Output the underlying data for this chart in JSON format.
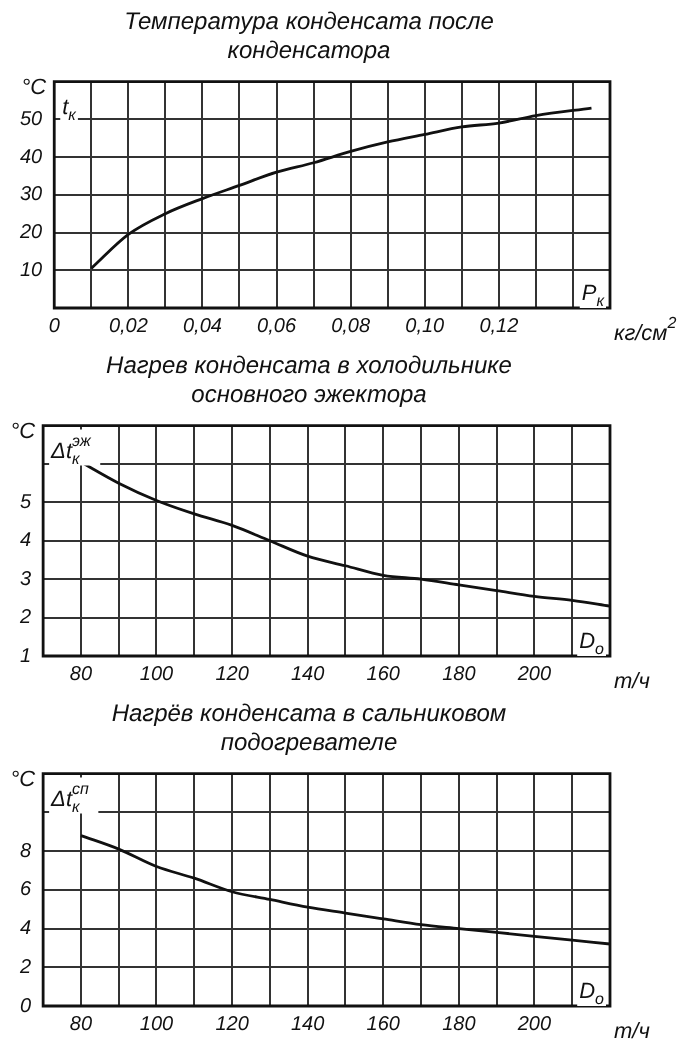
{
  "chart_data": [
    {
      "type": "line",
      "title": "Температура конденсата после конденсатора",
      "xlabel": "кг/см$^{2}$",
      "ylabel": "°C",
      "annotations": [
        "t$_{к}$",
        "P$_{к}$"
      ],
      "x": [
        0.01,
        0.02,
        0.03,
        0.04,
        0.05,
        0.06,
        0.07,
        0.08,
        0.09,
        0.1,
        0.11,
        0.12,
        0.13,
        0.145
      ],
      "series": [
        {
          "color": "#111111",
          "values": [
            10.5,
            19.5,
            25,
            29,
            32.5,
            36,
            38.5,
            41.5,
            44,
            46,
            48,
            49,
            51,
            53
          ]
        }
      ],
      "xlim": [
        0,
        0.15
      ],
      "xticks": [
        0,
        {
          "value": 0.01,
          "label": null
        },
        {
          "value": 0.02,
          "label": "0,02"
        },
        {
          "value": 0.03,
          "label": null
        },
        {
          "value": 0.04,
          "label": "0,04"
        },
        {
          "value": 0.05,
          "label": null
        },
        {
          "value": 0.06,
          "label": "0,06"
        },
        {
          "value": 0.07,
          "label": null
        },
        {
          "value": 0.08,
          "label": "0,08"
        },
        {
          "value": 0.09,
          "label": null
        },
        {
          "value": 0.1,
          "label": "0,10"
        },
        {
          "value": 0.11,
          "label": null
        },
        {
          "value": 0.12,
          "label": "0,12"
        },
        {
          "value": 0.13,
          "label": null
        },
        {
          "value": 0.14,
          "label": null
        }
      ],
      "ylim": [
        0,
        60
      ],
      "yticks": [
        10,
        20,
        30,
        40,
        50,
        {
          "value": 60,
          "label": null
        }
      ],
      "grid": true,
      "marker": "none",
      "line_style": "solid",
      "legend": false
    },
    {
      "type": "line",
      "title": "Нагрев конденсата в холодильнике основного эжектора",
      "xlabel": "т/ч",
      "ylabel": "°C",
      "annotations": [
        "Δt$_{к}$$^{эж}$",
        "D$_{о}$"
      ],
      "x": [
        80,
        90,
        100,
        110,
        120,
        130,
        140,
        150,
        160,
        170,
        180,
        190,
        200,
        210,
        220
      ],
      "series": [
        {
          "color": "#111111",
          "values": [
            6.05,
            5.5,
            5.05,
            4.7,
            4.4,
            4.0,
            3.6,
            3.35,
            3.1,
            3.0,
            2.85,
            2.7,
            2.55,
            2.45,
            2.3
          ]
        }
      ],
      "xlim": [
        70,
        220
      ],
      "xticks": [
        {
          "value": 70,
          "label": null
        },
        80,
        {
          "value": 90,
          "label": null
        },
        100,
        {
          "value": 110,
          "label": null
        },
        120,
        {
          "value": 130,
          "label": null
        },
        140,
        {
          "value": 150,
          "label": null
        },
        160,
        {
          "value": 170,
          "label": null
        },
        180,
        {
          "value": 190,
          "label": null
        },
        200,
        {
          "value": 210,
          "label": null
        }
      ],
      "ylim": [
        1,
        7
      ],
      "yticks": [
        1,
        2,
        3,
        4,
        5,
        {
          "value": 6,
          "label": null
        }
      ],
      "grid": true,
      "marker": "none",
      "line_style": "solid",
      "legend": false
    },
    {
      "type": "line",
      "title": "Нагрёв конденсата в сальниковом подогревателе",
      "xlabel": "т/ч",
      "ylabel": "°C",
      "annotations": [
        "Δt$_{к}$$^{сп}$",
        "D$_{о}$"
      ],
      "x": [
        80,
        90,
        100,
        110,
        120,
        130,
        140,
        150,
        160,
        170,
        180,
        190,
        200,
        210,
        220
      ],
      "series": [
        {
          "color": "#111111",
          "values": [
            8.8,
            8.1,
            7.2,
            6.6,
            5.9,
            5.5,
            5.1,
            4.8,
            4.5,
            4.2,
            4.0,
            3.8,
            3.6,
            3.4,
            3.2
          ]
        }
      ],
      "xlim": [
        70,
        220
      ],
      "xticks": [
        {
          "value": 70,
          "label": null
        },
        80,
        {
          "value": 90,
          "label": null
        },
        100,
        {
          "value": 110,
          "label": null
        },
        120,
        {
          "value": 130,
          "label": null
        },
        140,
        {
          "value": 150,
          "label": null
        },
        160,
        {
          "value": 170,
          "label": null
        },
        180,
        {
          "value": 190,
          "label": null
        },
        200,
        {
          "value": 210,
          "label": null
        }
      ],
      "ylim": [
        0,
        12
      ],
      "yticks": [
        0,
        2,
        4,
        6,
        8,
        {
          "value": 10,
          "label": null
        }
      ],
      "grid": true,
      "marker": "none",
      "line_style": "solid",
      "legend": false
    }
  ]
}
